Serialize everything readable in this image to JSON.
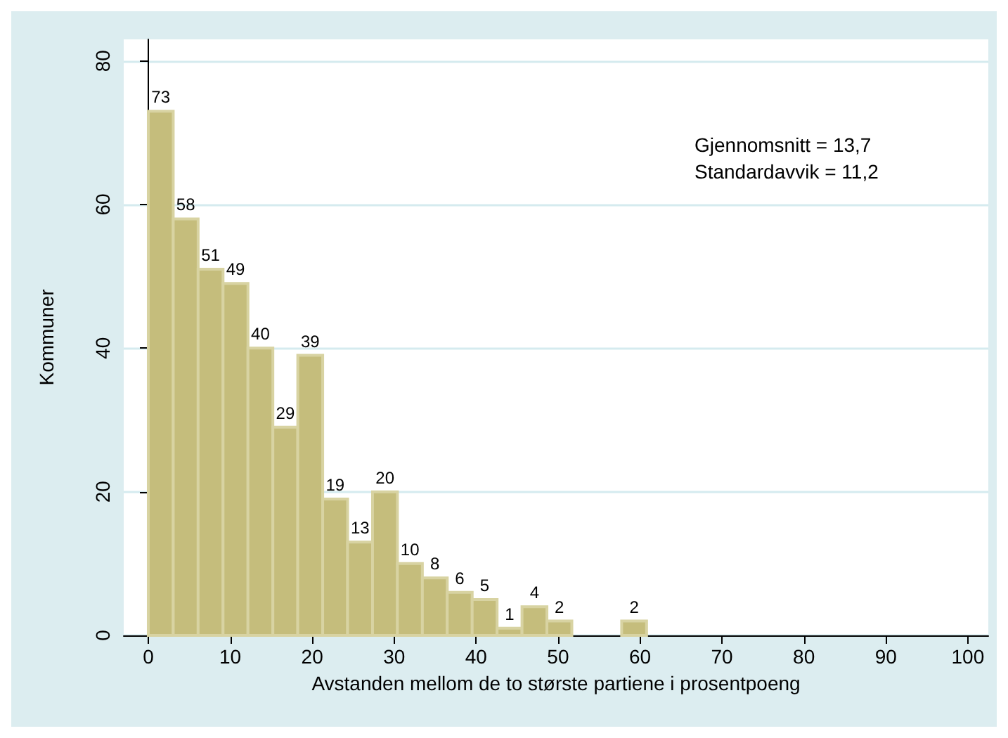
{
  "chart_data": {
    "type": "histogram",
    "xlabel": "Avstanden mellom de to største partiene i prosentpoeng",
    "ylabel": "Kommuner",
    "bins": [
      0,
      3.04,
      6.08,
      9.12,
      12.16,
      15.2,
      18.24,
      21.28,
      24.32,
      27.36,
      30.4,
      33.44,
      36.48,
      39.52,
      42.56,
      45.6,
      48.64,
      51.68,
      54.72,
      57.76,
      60.8
    ],
    "values": [
      73,
      58,
      51,
      49,
      40,
      29,
      39,
      19,
      13,
      20,
      10,
      8,
      6,
      5,
      1,
      4,
      2,
      0,
      0,
      2
    ],
    "value_labels": [
      "73",
      "58",
      "51",
      "49",
      "40",
      "29",
      "39",
      "19",
      "13",
      "20",
      "10",
      "8",
      "6",
      "5",
      "1",
      "4",
      "2",
      null,
      null,
      "2"
    ],
    "color": "#c5bd7c",
    "xlim": [
      -3,
      102.5
    ],
    "xticks": [
      0,
      10,
      20,
      30,
      40,
      50,
      60,
      70,
      80,
      90,
      100
    ],
    "ylim": [
      0,
      83
    ],
    "yticks": [
      0,
      20,
      40,
      60,
      80
    ],
    "grid": "y",
    "annotations": [
      "Gjennomsnitt = 13,7",
      "Standardavvik = 11,2"
    ]
  }
}
